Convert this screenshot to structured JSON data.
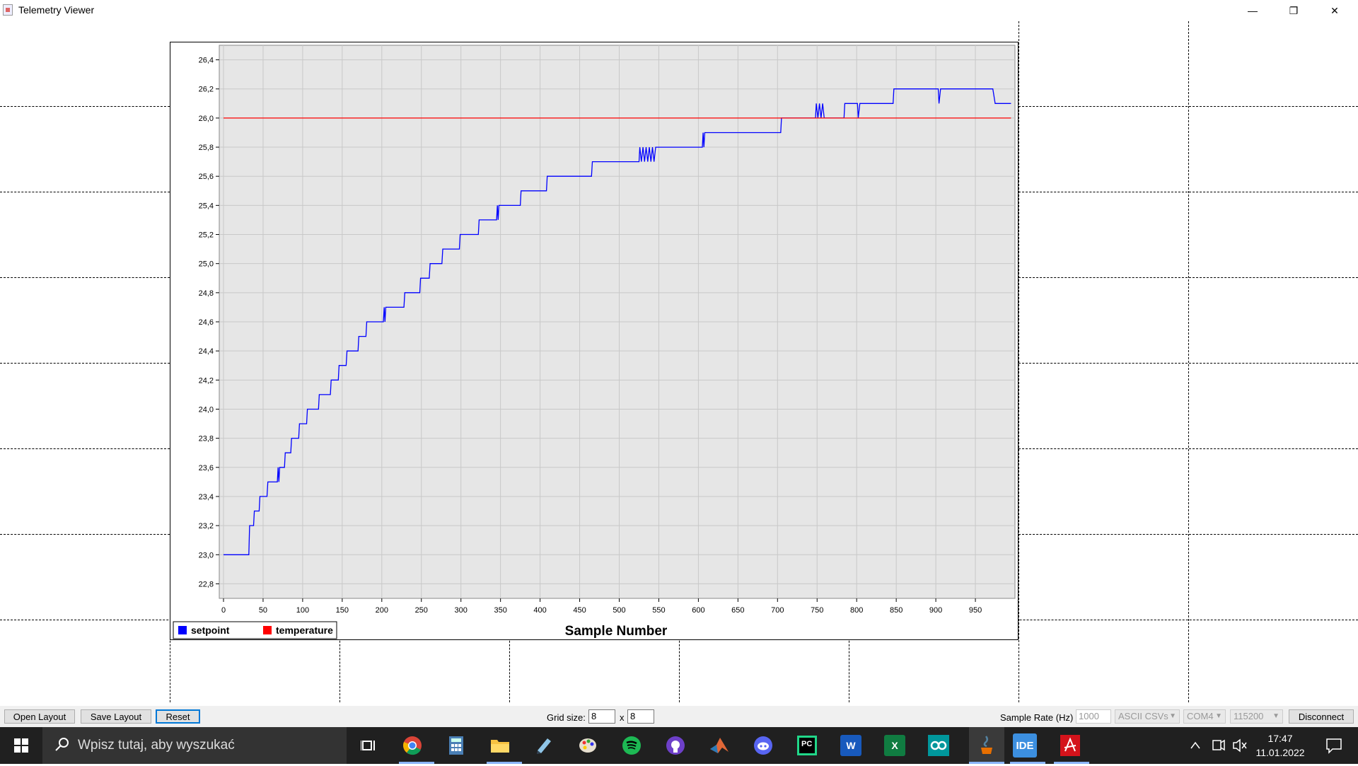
{
  "window": {
    "title": "Telemetry Viewer",
    "controls": {
      "minimize": "—",
      "maximize": "❐",
      "close": "✕"
    }
  },
  "chart_data": {
    "type": "line",
    "xlabel": "Sample Number",
    "ylabel": "",
    "xlim": [
      0,
      1000
    ],
    "ylim": [
      22.7,
      26.5
    ],
    "x_ticks": [
      "0",
      "50",
      "100",
      "150",
      "200",
      "250",
      "300",
      "350",
      "400",
      "450",
      "500",
      "550",
      "600",
      "650",
      "700",
      "750",
      "800",
      "850",
      "900",
      "950"
    ],
    "y_ticks": [
      "22,8",
      "23,0",
      "23,2",
      "23,4",
      "23,6",
      "23,8",
      "24,0",
      "24,2",
      "24,4",
      "24,6",
      "24,8",
      "25,0",
      "25,2",
      "25,4",
      "25,6",
      "25,8",
      "26,0",
      "26,2",
      "26,4"
    ],
    "grid": true,
    "legend_position": "bottom-left",
    "series": [
      {
        "name": "setpoint",
        "color": "#0000ff",
        "points": [
          [
            0,
            23.0
          ],
          [
            32,
            23.0
          ],
          [
            33,
            23.2
          ],
          [
            38,
            23.2
          ],
          [
            39,
            23.3
          ],
          [
            45,
            23.3
          ],
          [
            46,
            23.4
          ],
          [
            55,
            23.4
          ],
          [
            56,
            23.5
          ],
          [
            68,
            23.5
          ],
          [
            69,
            23.6
          ],
          [
            70,
            23.5
          ],
          [
            71,
            23.6
          ],
          [
            77,
            23.6
          ],
          [
            78,
            23.7
          ],
          [
            85,
            23.7
          ],
          [
            86,
            23.8
          ],
          [
            95,
            23.8
          ],
          [
            96,
            23.9
          ],
          [
            105,
            23.9
          ],
          [
            106,
            24.0
          ],
          [
            120,
            24.0
          ],
          [
            121,
            24.1
          ],
          [
            135,
            24.1
          ],
          [
            136,
            24.2
          ],
          [
            145,
            24.2
          ],
          [
            146,
            24.3
          ],
          [
            155,
            24.3
          ],
          [
            156,
            24.4
          ],
          [
            170,
            24.4
          ],
          [
            171,
            24.5
          ],
          [
            180,
            24.5
          ],
          [
            181,
            24.6
          ],
          [
            202,
            24.6
          ],
          [
            203,
            24.7
          ],
          [
            204,
            24.6
          ],
          [
            205,
            24.7
          ],
          [
            228,
            24.7
          ],
          [
            229,
            24.8
          ],
          [
            248,
            24.8
          ],
          [
            249,
            24.9
          ],
          [
            260,
            24.9
          ],
          [
            261,
            25.0
          ],
          [
            276,
            25.0
          ],
          [
            277,
            25.1
          ],
          [
            298,
            25.1
          ],
          [
            299,
            25.2
          ],
          [
            322,
            25.2
          ],
          [
            323,
            25.3
          ],
          [
            345,
            25.3
          ],
          [
            346,
            25.4
          ],
          [
            347,
            25.3
          ],
          [
            348,
            25.4
          ],
          [
            375,
            25.4
          ],
          [
            376,
            25.5
          ],
          [
            408,
            25.5
          ],
          [
            409,
            25.6
          ],
          [
            465,
            25.6
          ],
          [
            466,
            25.7
          ],
          [
            525,
            25.7
          ],
          [
            526,
            25.8
          ],
          [
            528,
            25.7
          ],
          [
            530,
            25.8
          ],
          [
            532,
            25.7
          ],
          [
            534,
            25.8
          ],
          [
            536,
            25.7
          ],
          [
            538,
            25.8
          ],
          [
            540,
            25.7
          ],
          [
            542,
            25.8
          ],
          [
            544,
            25.7
          ],
          [
            546,
            25.8
          ],
          [
            605,
            25.8
          ],
          [
            606,
            25.9
          ],
          [
            607,
            25.8
          ],
          [
            608,
            25.9
          ],
          [
            704,
            25.9
          ],
          [
            705,
            26.0
          ],
          [
            748,
            26.0
          ],
          [
            749,
            26.1
          ],
          [
            751,
            26.0
          ],
          [
            753,
            26.1
          ],
          [
            755,
            26.0
          ],
          [
            757,
            26.1
          ],
          [
            759,
            26.0
          ],
          [
            784,
            26.0
          ],
          [
            785,
            26.1
          ],
          [
            801,
            26.1
          ],
          [
            802,
            26.0
          ],
          [
            804,
            26.1
          ],
          [
            846,
            26.1
          ],
          [
            847,
            26.2
          ],
          [
            903,
            26.2
          ],
          [
            904,
            26.1
          ],
          [
            906,
            26.2
          ],
          [
            972,
            26.2
          ],
          [
            975,
            26.1
          ],
          [
            995,
            26.1
          ]
        ]
      },
      {
        "name": "temperature",
        "color": "#ff0000",
        "points": [
          [
            0,
            26.0
          ],
          [
            995,
            26.0
          ]
        ]
      }
    ]
  },
  "bottombar": {
    "open_layout": "Open Layout",
    "save_layout": "Save Layout",
    "reset": "Reset",
    "grid_size_label": "Grid size:",
    "grid_cols": "8",
    "grid_x": "x",
    "grid_rows": "8",
    "sample_rate_label": "Sample Rate (Hz)",
    "sample_rate": "1000",
    "format": "ASCII CSVs",
    "port": "COM4",
    "baud": "115200",
    "disconnect": "Disconnect"
  },
  "taskbar": {
    "search_placeholder": "Wpisz tutaj, aby wyszukać",
    "pycharm_label": "PC",
    "word_label": "W",
    "excel_label": "X",
    "ide_label": "IDE",
    "time": "17:47",
    "date": "11.01.2022",
    "icons": [
      "windows-start-icon",
      "task-view-icon",
      "chrome-icon",
      "calculator-icon",
      "file-explorer-icon",
      "notepad-icon",
      "paint-icon",
      "spotify-icon",
      "github-icon",
      "matlab-icon",
      "discord-icon",
      "pycharm-icon",
      "word-icon",
      "excel-icon",
      "arduino-icon",
      "java-icon",
      "ide-icon",
      "acrobat-icon"
    ]
  }
}
